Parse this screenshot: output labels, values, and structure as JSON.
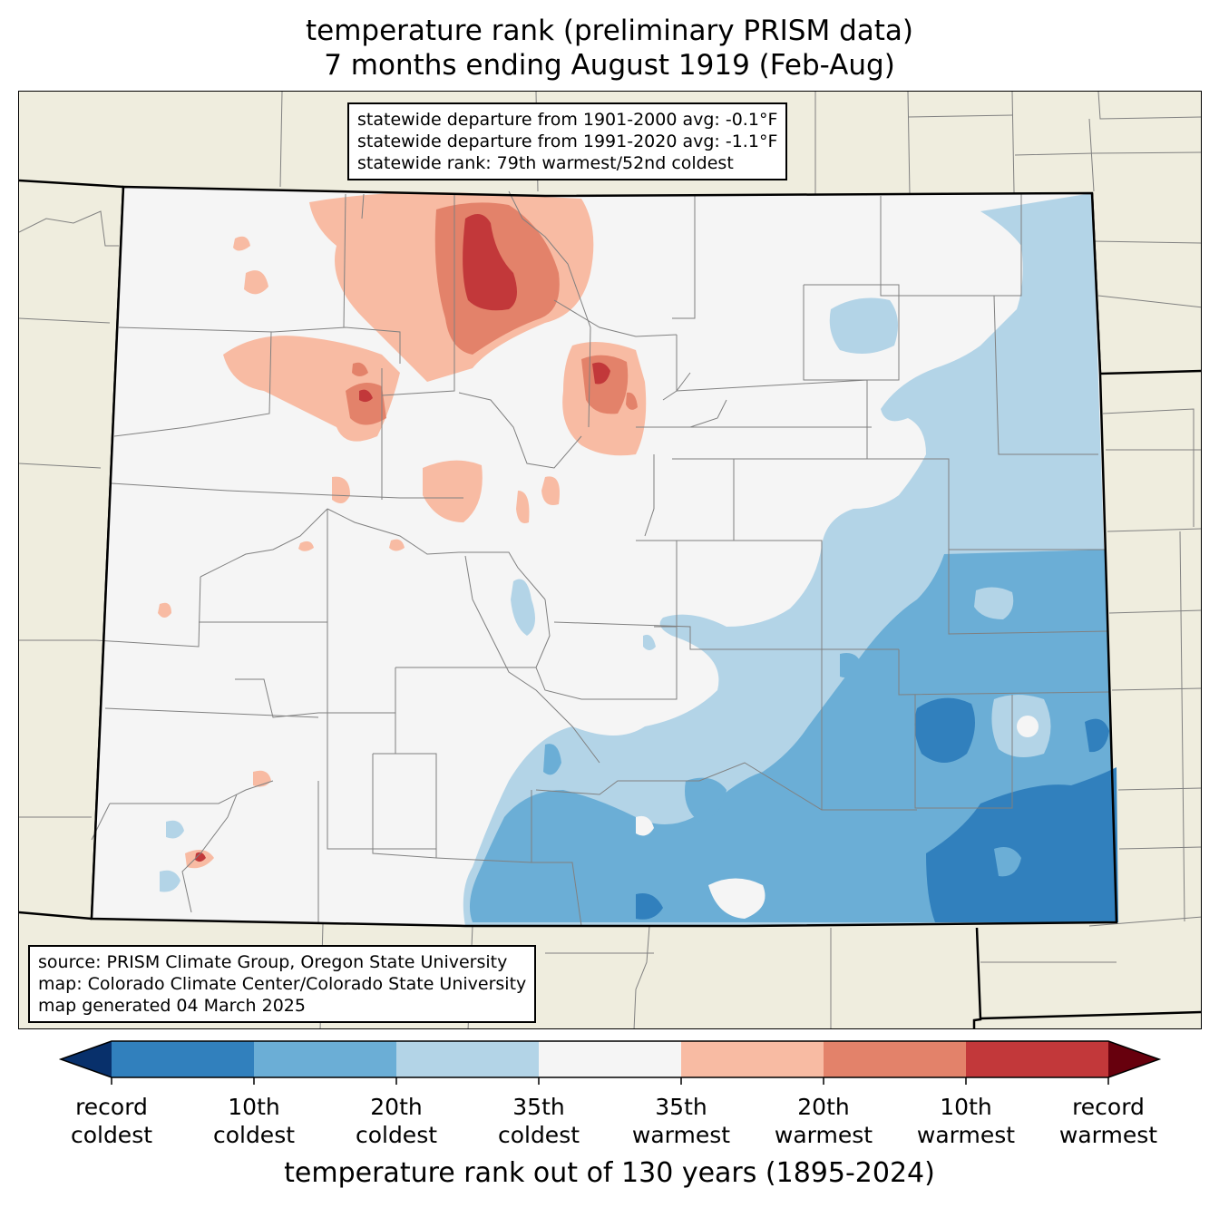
{
  "title": {
    "line1": "temperature rank (preliminary PRISM data)",
    "line2": "7 months ending August 1919 (Feb-Aug)"
  },
  "stats": {
    "line1": "statewide departure from 1901-2000 avg: -0.1°F",
    "line2": "statewide departure from 1991-2020 avg: -1.1°F",
    "line3": "statewide rank: 79th warmest/52nd coldest"
  },
  "source": {
    "line1": "source: PRISM Climate Group, Oregon State University",
    "line2": "map: Colorado Climate Center/Colorado State University",
    "line3": "map generated 04 March 2025"
  },
  "colorbar": {
    "title": "temperature rank out of 130 years (1895-2024)",
    "colors": [
      "#08306b",
      "#3180bd",
      "#6baed6",
      "#b3d4e7",
      "#f5f5f5",
      "#f8bba3",
      "#e3826a",
      "#c2383a",
      "#67000d"
    ],
    "ticks": [
      {
        "line1": "record",
        "line2": "coldest"
      },
      {
        "line1": "10th",
        "line2": "coldest"
      },
      {
        "line1": "20th",
        "line2": "coldest"
      },
      {
        "line1": "35th",
        "line2": "coldest"
      },
      {
        "line1": "35th",
        "line2": "warmest"
      },
      {
        "line1": "20th",
        "line2": "warmest"
      },
      {
        "line1": "10th",
        "line2": "warmest"
      },
      {
        "line1": "record",
        "line2": "warmest"
      }
    ]
  },
  "map_colors": {
    "land": "#efedde",
    "state_fill": "#f5f5f5",
    "border": "#000000",
    "county": "#808080"
  }
}
